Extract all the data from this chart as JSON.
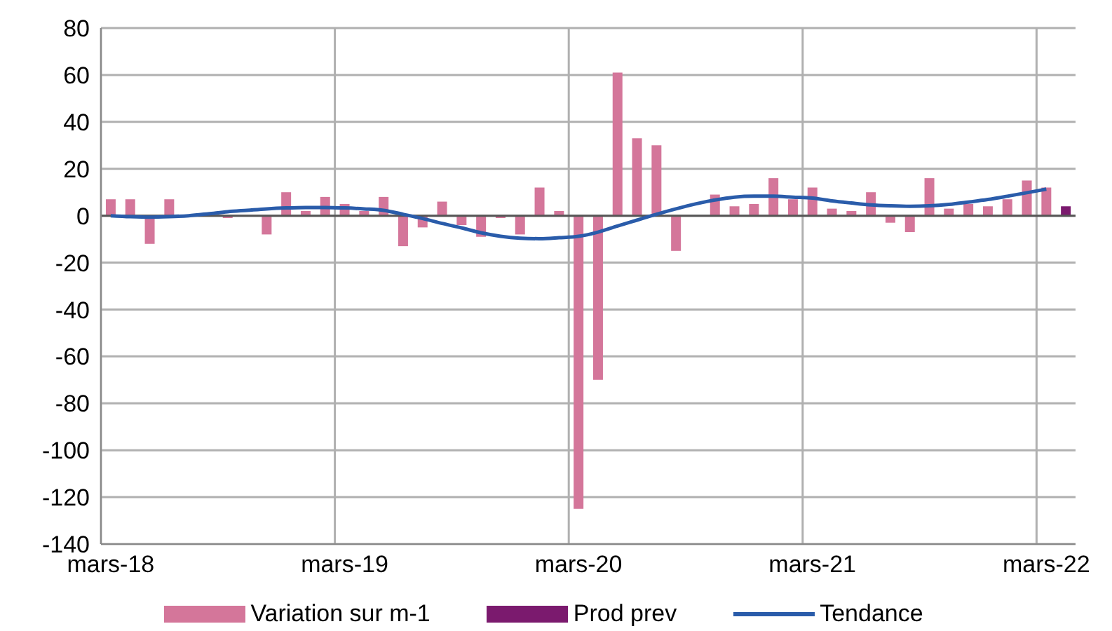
{
  "chart_data": {
    "type": "bar",
    "categories": [
      "mars-18",
      null,
      null,
      null,
      null,
      null,
      null,
      null,
      null,
      null,
      null,
      null,
      "mars-19",
      null,
      null,
      null,
      null,
      null,
      null,
      null,
      null,
      null,
      null,
      null,
      "mars-20",
      null,
      null,
      null,
      null,
      null,
      null,
      null,
      null,
      null,
      null,
      null,
      "mars-21",
      null,
      null,
      null,
      null,
      null,
      null,
      null,
      null,
      null,
      null,
      null,
      "mars-22",
      null
    ],
    "series": [
      {
        "name": "Variation sur m-1",
        "color": "#d4769a",
        "values": [
          7,
          7,
          -12,
          7,
          null,
          null,
          -1,
          0,
          -8,
          10,
          2,
          8,
          5,
          2,
          8,
          -13,
          -5,
          6,
          -4,
          -9,
          -1,
          -8,
          12,
          2,
          -125,
          -70,
          61,
          33,
          30,
          -15,
          0,
          9,
          4,
          5,
          16,
          7,
          12,
          3,
          2,
          10,
          -3,
          -7,
          16,
          3,
          5,
          4,
          7,
          15,
          12,
          null
        ]
      },
      {
        "name": "Prod prev",
        "color": "#7b1a6e",
        "values": [
          null,
          null,
          null,
          null,
          null,
          null,
          null,
          null,
          null,
          null,
          null,
          null,
          null,
          null,
          null,
          null,
          null,
          null,
          null,
          null,
          null,
          null,
          null,
          null,
          null,
          null,
          null,
          null,
          null,
          null,
          null,
          null,
          null,
          null,
          null,
          null,
          null,
          null,
          null,
          null,
          null,
          null,
          null,
          null,
          null,
          null,
          null,
          null,
          null,
          4
        ]
      },
      {
        "name": "Tendance",
        "type": "line",
        "color": "#2a5caa",
        "values": [
          0,
          -0.4,
          -0.6,
          -0.4,
          0,
          0.8,
          1.7,
          2.3,
          2.9,
          3.3,
          3.5,
          3.5,
          3.3,
          2.9,
          2.3,
          0.6,
          -1.2,
          -3.3,
          -5.2,
          -7.3,
          -8.8,
          -9.6,
          -9.8,
          -9.4,
          -8.8,
          -7,
          -4.4,
          -1.9,
          0.6,
          2.9,
          5,
          6.7,
          7.9,
          8.3,
          8.3,
          7.9,
          7.5,
          6.3,
          5.4,
          4.6,
          4.2,
          4,
          4.2,
          4.8,
          5.8,
          6.9,
          8.3,
          9.8,
          11.3,
          null
        ]
      }
    ],
    "ylim": [
      -140,
      80
    ],
    "yticks": [
      -140,
      -120,
      -100,
      -80,
      -60,
      -40,
      -20,
      0,
      20,
      40,
      60,
      80
    ],
    "grid": true,
    "legend": "bottom"
  }
}
